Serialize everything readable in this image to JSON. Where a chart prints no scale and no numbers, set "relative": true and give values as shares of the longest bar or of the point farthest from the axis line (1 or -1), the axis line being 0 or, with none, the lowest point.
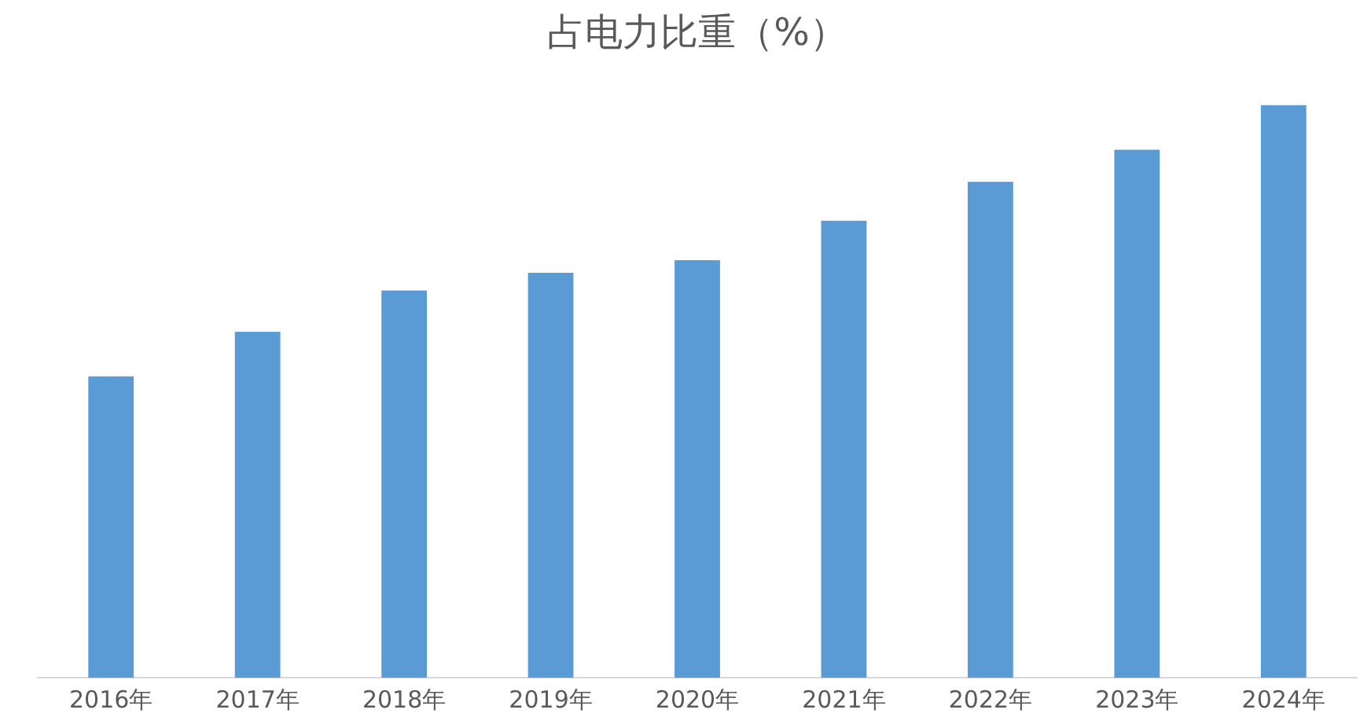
{
  "chart_data": {
    "type": "bar",
    "title": "占电力比重（%）",
    "relative": true,
    "categories": [
      "2016年",
      "2017年",
      "2018年",
      "2019年",
      "2020年",
      "2021年",
      "2022年",
      "2023年",
      "2024年"
    ],
    "values": [
      0.526,
      0.604,
      0.676,
      0.707,
      0.729,
      0.798,
      0.866,
      0.922,
      1
    ],
    "color": "#5b9bd5",
    "grid": false,
    "legend": false
  }
}
